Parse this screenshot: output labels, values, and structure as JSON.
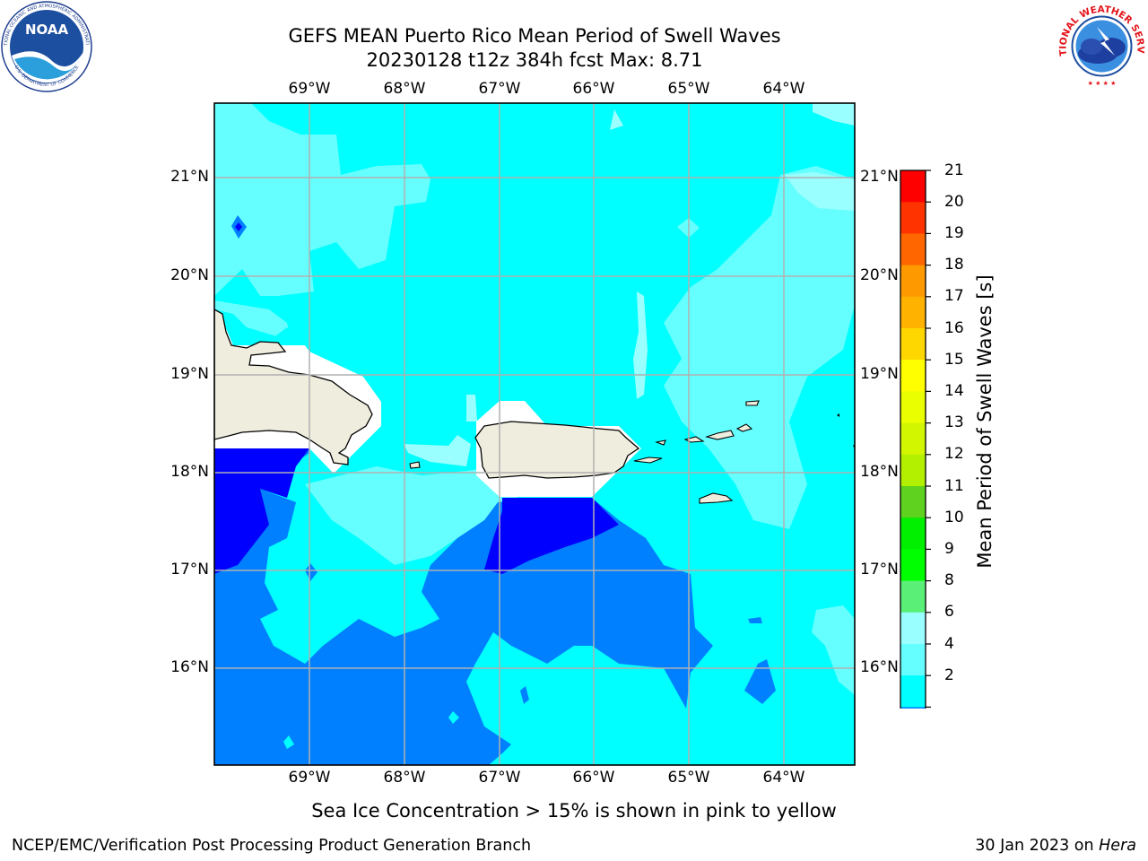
{
  "title": {
    "line1": "GEFS MEAN Puerto Rico Mean Period of Swell Waves",
    "line2": "20230128 t12z 384h fcst   Max: 8.71"
  },
  "map": {
    "lon_ticks": [
      "69°W",
      "68°W",
      "67°W",
      "66°W",
      "65°W",
      "64°W"
    ],
    "lat_ticks": [
      "21°N",
      "20°N",
      "19°N",
      "18°N",
      "17°N",
      "16°N"
    ],
    "land_color": "#efedde",
    "grid_color": "#b0b0b0"
  },
  "colorbar": {
    "title": "Mean Period of Swell Waves [s]",
    "labels": [
      "21",
      "20",
      "19",
      "18",
      "17",
      "16",
      "15",
      "14",
      "13",
      "12",
      "11",
      "10",
      "9",
      "8",
      "6",
      "4",
      "2"
    ],
    "colors": [
      "#ff0000",
      "#ff3300",
      "#ff6600",
      "#ff9900",
      "#ffb300",
      "#ffd700",
      "#ffff00",
      "#eaff00",
      "#d2f500",
      "#b2f000",
      "#5ed21e",
      "#00f000",
      "#00ff00",
      "#5af078",
      "#99ffff",
      "#66ffff",
      "#00ffff",
      "#0080ff",
      "#0000ff"
    ]
  },
  "note": "Sea Ice Concentration > 15% is shown in pink to yellow",
  "footer": {
    "left": "NCEP/EMC/Verification Post Processing Product Generation Branch",
    "date": "30 Jan 2023 on ",
    "machine": "Hera"
  },
  "logos": {
    "noaa_text": "NOAA",
    "noaa_ring_top": "NATIONAL OCEANIC AND ATMOSPHERIC ADMINISTRATION",
    "noaa_ring_bottom": "U.S. DEPARTMENT OF COMMERCE",
    "nws_ring": "NATIONAL WEATHER SERVICE"
  }
}
